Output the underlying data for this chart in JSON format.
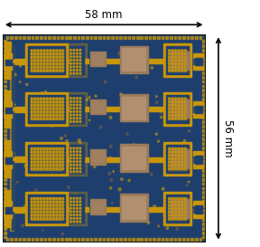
{
  "width_label": "58 mm",
  "height_label": "56 mm",
  "fig_width": 2.88,
  "fig_height": 2.73,
  "dpi": 100,
  "pcb_bg": "#1e3f6e",
  "gold": "#c8960a",
  "gold2": "#d4a520",
  "brown": "#9b7b5a",
  "brown2": "#8a6c4e",
  "text_fontsize": 8.5,
  "arrow_lw": 1.2,
  "border_color": "#111111"
}
